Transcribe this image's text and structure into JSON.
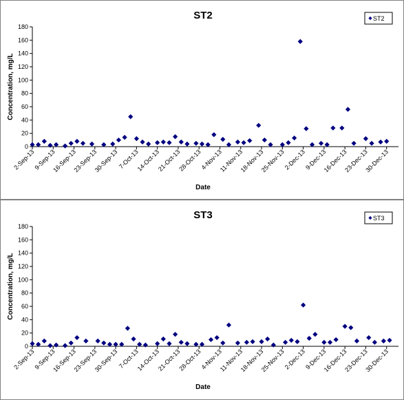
{
  "chart_data": [
    {
      "type": "scatter",
      "title": "ST2",
      "xlabel": "Date",
      "ylabel": "Concentration, mg/L",
      "ylim": [
        0,
        180
      ],
      "yticks": [
        "0",
        "20",
        "40",
        "60",
        "80",
        "100",
        "120",
        "140",
        "160",
        "180"
      ],
      "xlim": [
        "2-Sep-13",
        "3-Jan-14"
      ],
      "xticks": [
        "2-Sep-13",
        "9-Sep-13",
        "16-Sep-13",
        "23-Sep-13",
        "30-Sep-13",
        "7-Oct-13",
        "14-Oct-13",
        "21-Oct-13",
        "28-Oct-13",
        "4-Nov-13",
        "11-Nov-13",
        "18-Nov-13",
        "25-Nov-13",
        "2-Dec-13",
        "9-Dec-13",
        "16-Dec-13",
        "23-Dec-13",
        "30-Dec-13"
      ],
      "grid": false,
      "legend_position": "top-right",
      "marker_color": "#000080",
      "series": [
        {
          "name": "ST2",
          "x": [
            "2-Sep-13",
            "4-Sep-13",
            "6-Sep-13",
            "8-Sep-13",
            "10-Sep-13",
            "13-Sep-13",
            "15-Sep-13",
            "17-Sep-13",
            "19-Sep-13",
            "22-Sep-13",
            "26-Sep-13",
            "29-Sep-13",
            "1-Oct-13",
            "3-Oct-13",
            "5-Oct-13",
            "7-Oct-13",
            "9-Oct-13",
            "11-Oct-13",
            "14-Oct-13",
            "16-Oct-13",
            "18-Oct-13",
            "20-Oct-13",
            "22-Oct-13",
            "24-Oct-13",
            "27-Oct-13",
            "29-Oct-13",
            "31-Oct-13",
            "2-Nov-13",
            "5-Nov-13",
            "7-Nov-13",
            "10-Nov-13",
            "12-Nov-13",
            "14-Nov-13",
            "17-Nov-13",
            "19-Nov-13",
            "21-Nov-13",
            "25-Nov-13",
            "27-Nov-13",
            "29-Nov-13",
            "1-Dec-13",
            "3-Dec-13",
            "5-Dec-13",
            "8-Dec-13",
            "10-Dec-13",
            "12-Dec-13",
            "15-Dec-13",
            "17-Dec-13",
            "19-Dec-13",
            "23-Dec-13",
            "25-Dec-13",
            "28-Dec-13",
            "30-Dec-13"
          ],
          "y": [
            3,
            3,
            8,
            2,
            3,
            1,
            5,
            8,
            5,
            4,
            3,
            4,
            10,
            14,
            45,
            12,
            7,
            4,
            6,
            7,
            6,
            15,
            7,
            4,
            5,
            4,
            3,
            18,
            11,
            3,
            7,
            6,
            9,
            32,
            10,
            3,
            3,
            6,
            13,
            158,
            27,
            3,
            5,
            3,
            28,
            28,
            56,
            5,
            12,
            5,
            7,
            8
          ]
        }
      ]
    },
    {
      "type": "scatter",
      "title": "ST3",
      "xlabel": "Date",
      "ylabel": "Concentration, mg/L",
      "ylim": [
        0,
        180
      ],
      "yticks": [
        "0",
        "20",
        "40",
        "60",
        "80",
        "100",
        "120",
        "140",
        "160",
        "180"
      ],
      "xlim": [
        "2-Sep-13",
        "3-Jan-14"
      ],
      "xticks": [
        "2-Sep-13",
        "9-Sep-13",
        "16-Sep-13",
        "23-Sep-13",
        "30-Sep-13",
        "7-Oct-13",
        "14-Oct-13",
        "21-Oct-13",
        "28-Oct-13",
        "4-Nov-13",
        "11-Nov-13",
        "18-Nov-13",
        "25-Nov-13",
        "2-Dec-13",
        "9-Dec-13",
        "16-Dec-13",
        "23-Dec-13",
        "30-Dec-13"
      ],
      "grid": false,
      "legend_position": "top-right",
      "marker_color": "#000080",
      "series": [
        {
          "name": "ST3",
          "x": [
            "2-Sep-13",
            "4-Sep-13",
            "6-Sep-13",
            "8-Sep-13",
            "10-Sep-13",
            "13-Sep-13",
            "15-Sep-13",
            "17-Sep-13",
            "20-Sep-13",
            "24-Sep-13",
            "26-Sep-13",
            "28-Sep-13",
            "30-Sep-13",
            "2-Oct-13",
            "4-Oct-13",
            "6-Oct-13",
            "8-Oct-13",
            "10-Oct-13",
            "14-Oct-13",
            "16-Oct-13",
            "18-Oct-13",
            "20-Oct-13",
            "22-Oct-13",
            "24-Oct-13",
            "27-Oct-13",
            "29-Oct-13",
            "1-Nov-13",
            "3-Nov-13",
            "5-Nov-13",
            "7-Nov-13",
            "10-Nov-13",
            "13-Nov-13",
            "15-Nov-13",
            "18-Nov-13",
            "20-Nov-13",
            "22-Nov-13",
            "26-Nov-13",
            "28-Nov-13",
            "30-Nov-13",
            "2-Dec-13",
            "4-Dec-13",
            "6-Dec-13",
            "9-Dec-13",
            "11-Dec-13",
            "13-Dec-13",
            "16-Dec-13",
            "18-Dec-13",
            "20-Dec-13",
            "24-Dec-13",
            "26-Dec-13",
            "29-Dec-13",
            "31-Dec-13"
          ],
          "y": [
            4,
            3,
            8,
            1,
            2,
            1,
            5,
            13,
            8,
            8,
            5,
            3,
            3,
            3,
            27,
            11,
            3,
            2,
            4,
            11,
            4,
            18,
            6,
            4,
            3,
            3,
            10,
            13,
            5,
            32,
            5,
            6,
            7,
            7,
            11,
            2,
            6,
            9,
            7,
            62,
            12,
            18,
            6,
            6,
            10,
            30,
            28,
            8,
            13,
            6,
            8,
            9
          ]
        }
      ]
    }
  ]
}
